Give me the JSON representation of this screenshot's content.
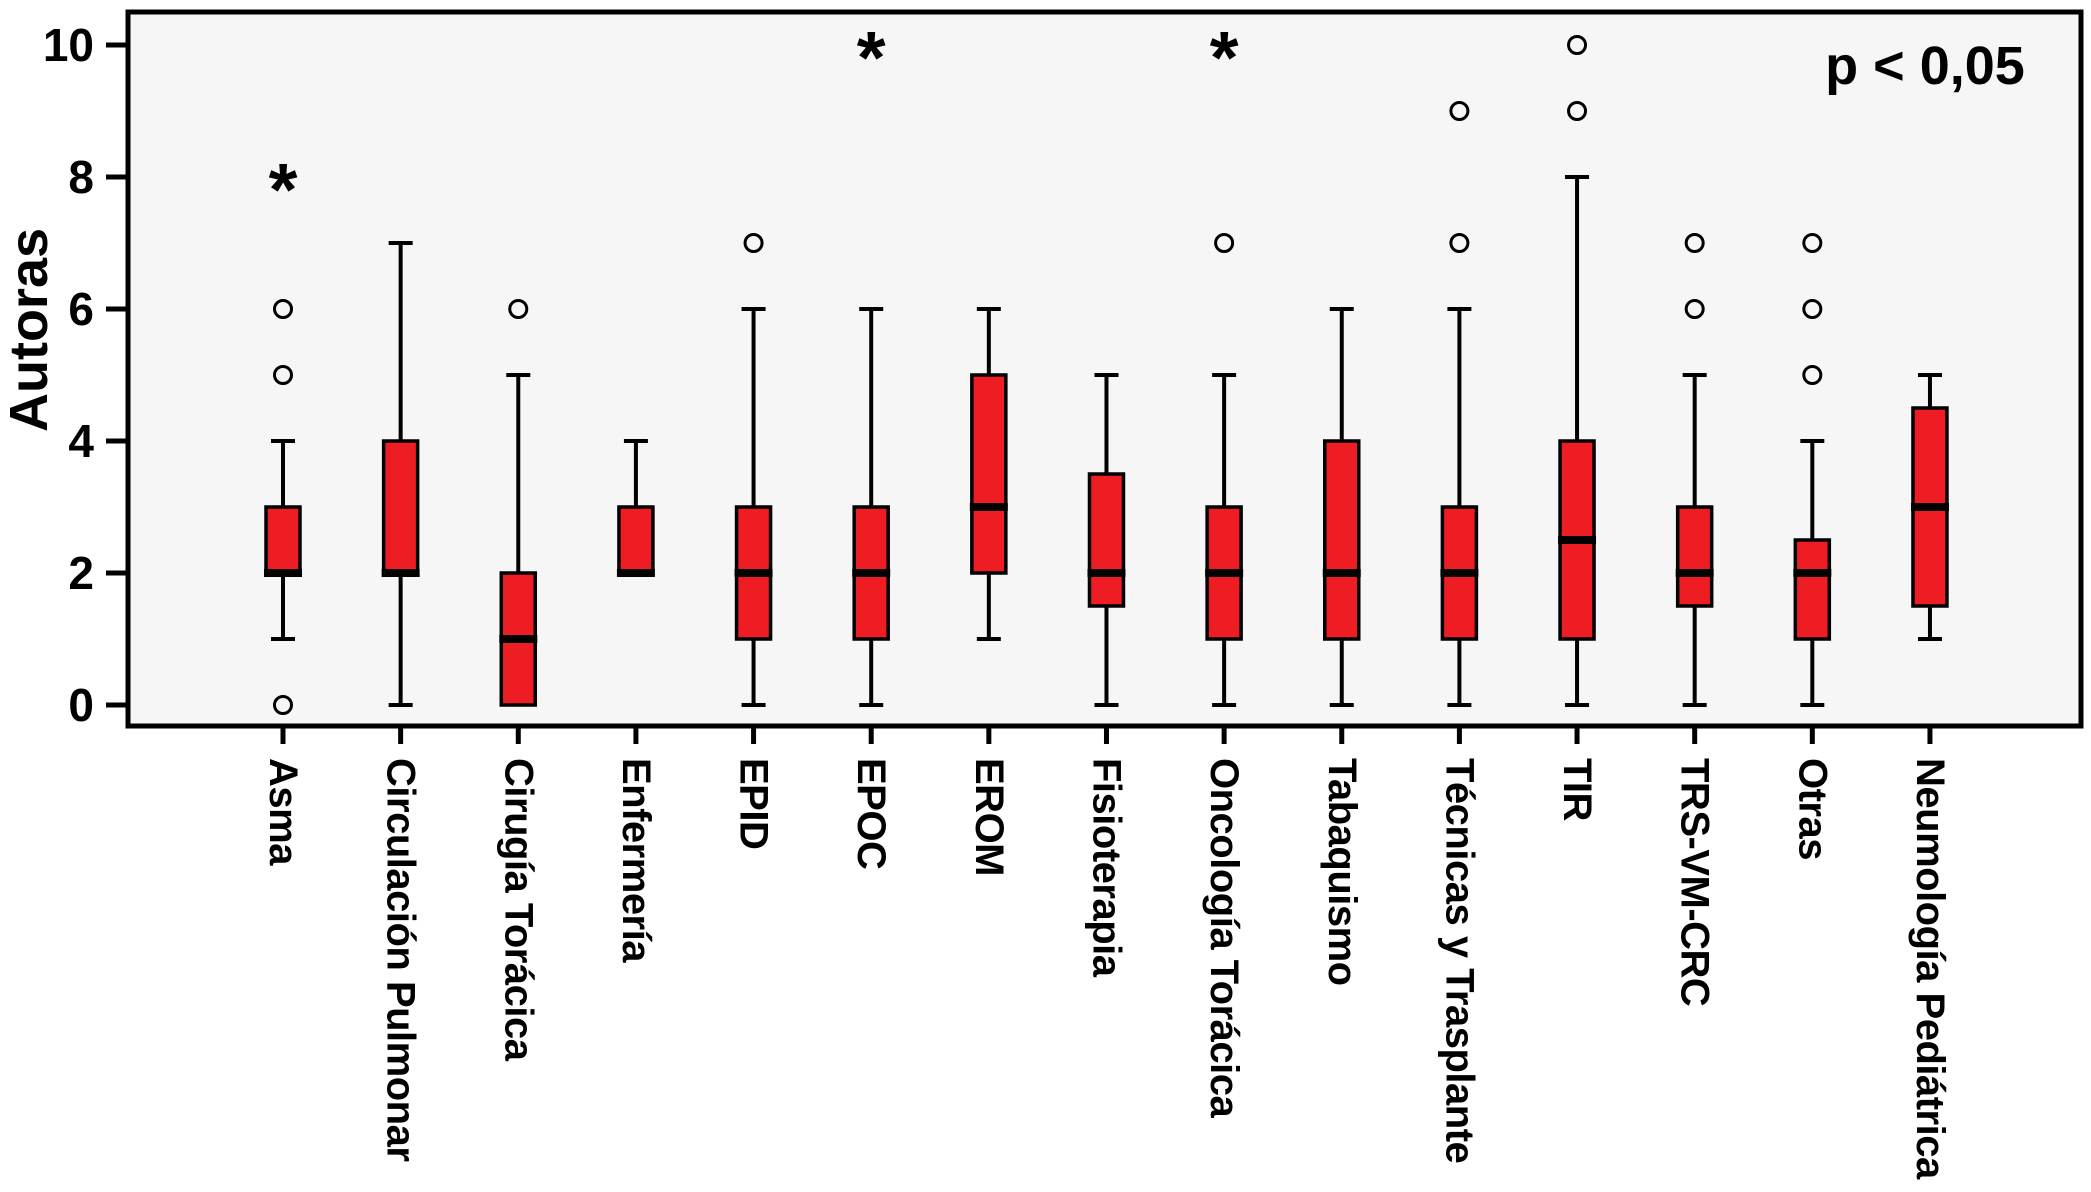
{
  "chart_data": {
    "type": "boxplot",
    "title": "",
    "ylabel": "Autoras",
    "xlabel": "",
    "annotation": "p < 0,05",
    "ylim": [
      0,
      10
    ],
    "yticks": [
      0,
      2,
      4,
      6,
      8,
      10
    ],
    "grid": false,
    "legend": "none",
    "outlier_marker": "o",
    "extreme_marker": "*",
    "colors": {
      "box_fill": "#ee1c23",
      "line_stroke": "#000000",
      "plot_background": "#f6f6f6",
      "page_background": "#ffffff"
    },
    "categories": [
      "Asma",
      "Circulación Pulmonar",
      "Cirugía Torácica",
      "Enfermería",
      "EPID",
      "EPOC",
      "EROM",
      "Fisioterapia",
      "Oncología Torácica",
      "Tabaquismo",
      "Técnicas y Trasplante",
      "TIR",
      "TRS-VM-CRC",
      "Otras",
      "Neumología Pediátrica"
    ],
    "series": [
      {
        "category": "Asma",
        "whisker_low": 1,
        "q1": 2,
        "median": 2,
        "q3": 3,
        "whisker_high": 4,
        "outliers": [
          0,
          5,
          6
        ],
        "extremes": [
          8
        ]
      },
      {
        "category": "Circulación Pulmonar",
        "whisker_low": 0,
        "q1": 2,
        "median": 2,
        "q3": 4,
        "whisker_high": 7,
        "outliers": [],
        "extremes": []
      },
      {
        "category": "Cirugía Torácica",
        "whisker_low": 0,
        "q1": 0,
        "median": 1,
        "q3": 2,
        "whisker_high": 5,
        "outliers": [
          6
        ],
        "extremes": []
      },
      {
        "category": "Enfermería",
        "whisker_low": 2,
        "q1": 2,
        "median": 2,
        "q3": 3,
        "whisker_high": 4,
        "outliers": [],
        "extremes": []
      },
      {
        "category": "EPID",
        "whisker_low": 0,
        "q1": 1,
        "median": 2,
        "q3": 3,
        "whisker_high": 6,
        "outliers": [
          7
        ],
        "extremes": []
      },
      {
        "category": "EPOC",
        "whisker_low": 0,
        "q1": 1,
        "median": 2,
        "q3": 3,
        "whisker_high": 6,
        "outliers": [],
        "extremes": [
          10
        ]
      },
      {
        "category": "EROM",
        "whisker_low": 1,
        "q1": 2,
        "median": 3,
        "q3": 5,
        "whisker_high": 6,
        "outliers": [],
        "extremes": []
      },
      {
        "category": "Fisioterapia",
        "whisker_low": 0,
        "q1": 1.5,
        "median": 2,
        "q3": 3.5,
        "whisker_high": 5,
        "outliers": [],
        "extremes": []
      },
      {
        "category": "Oncología Torácica",
        "whisker_low": 0,
        "q1": 1,
        "median": 2,
        "q3": 3,
        "whisker_high": 5,
        "outliers": [
          7
        ],
        "extremes": [
          10
        ]
      },
      {
        "category": "Tabaquismo",
        "whisker_low": 0,
        "q1": 1,
        "median": 2,
        "q3": 4,
        "whisker_high": 6,
        "outliers": [],
        "extremes": []
      },
      {
        "category": "Técnicas y Trasplante",
        "whisker_low": 0,
        "q1": 1,
        "median": 2,
        "q3": 3,
        "whisker_high": 6,
        "outliers": [
          7,
          9
        ],
        "extremes": []
      },
      {
        "category": "TIR",
        "whisker_low": 0,
        "q1": 1,
        "median": 2.5,
        "q3": 4,
        "whisker_high": 8,
        "outliers": [
          9,
          10
        ],
        "extremes": []
      },
      {
        "category": "TRS-VM-CRC",
        "whisker_low": 0,
        "q1": 1.5,
        "median": 2,
        "q3": 3,
        "whisker_high": 5,
        "outliers": [
          6,
          7
        ],
        "extremes": []
      },
      {
        "category": "Otras",
        "whisker_low": 0,
        "q1": 1,
        "median": 2,
        "q3": 2.5,
        "whisker_high": 4,
        "outliers": [
          5,
          6,
          7
        ],
        "extremes": []
      },
      {
        "category": "Neumología Pediátrica",
        "whisker_low": 1,
        "q1": 1.5,
        "median": 3,
        "q3": 4.5,
        "whisker_high": 5,
        "outliers": [],
        "extremes": []
      }
    ]
  }
}
